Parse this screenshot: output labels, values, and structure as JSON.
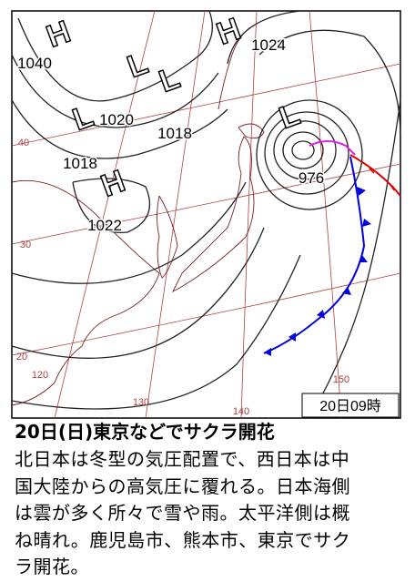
{
  "map": {
    "timestamp": "20日09時",
    "systems": [
      {
        "symbol": "H",
        "pressure": 1040
      },
      {
        "symbol": "L",
        "pressure": 1020
      },
      {
        "symbol": "L",
        "pressure": 1018
      },
      {
        "symbol": "L",
        "pressure": 1018
      },
      {
        "symbol": "H",
        "pressure": 1022
      },
      {
        "symbol": "H",
        "pressure": 1024
      },
      {
        "symbol": "L",
        "pressure": 976
      }
    ],
    "latitudes": [
      40,
      30,
      20
    ],
    "longitudes": [
      120,
      130,
      140,
      150
    ]
  },
  "article": {
    "heading": "20日(日)東京などでサクラ開花",
    "lines": [
      "北日本は冬型の気圧配置で、西日本は中",
      "国大陸からの高気圧に覆れる。日本海側",
      "は雲が多く所々で雪や雨。太平洋側は概",
      "ね晴れ。鹿児島市、熊本市、東京でサク",
      "ラ開花。"
    ]
  }
}
